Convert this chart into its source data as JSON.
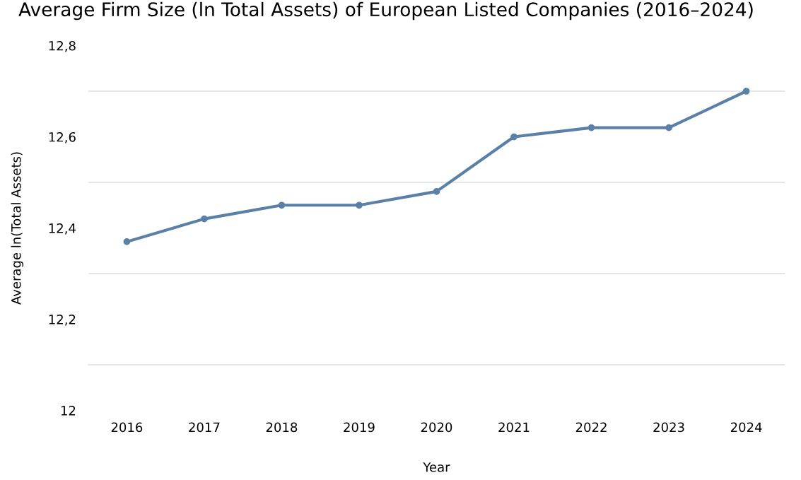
{
  "chart_data": {
    "type": "line",
    "title": "Average Firm Size (ln Total Assets) of European Listed Companies (2016–2024)",
    "xlabel": "Year",
    "ylabel": "Average ln(Total Assets)",
    "categories": [
      "2016",
      "2017",
      "2018",
      "2019",
      "2020",
      "2021",
      "2022",
      "2023",
      "2024"
    ],
    "series": [
      {
        "color": "#5b80a8",
        "values": [
          12.37,
          12.42,
          12.45,
          12.45,
          12.48,
          12.6,
          12.62,
          12.62,
          12.7
        ]
      }
    ],
    "ylim": [
      12,
      12.8
    ],
    "yticks": [
      {
        "value": 12,
        "label": "12"
      },
      {
        "value": 12.1,
        "label": null
      },
      {
        "value": 12.2,
        "label": "12,2"
      },
      {
        "value": 12.3,
        "label": null
      },
      {
        "value": 12.4,
        "label": "12,4"
      },
      {
        "value": 12.5,
        "label": null
      },
      {
        "value": 12.6,
        "label": "12,6"
      },
      {
        "value": 12.7,
        "label": null
      },
      {
        "value": 12.8,
        "label": "12,8"
      }
    ],
    "grid": "y",
    "marker": "circle",
    "line_style": "solid"
  }
}
